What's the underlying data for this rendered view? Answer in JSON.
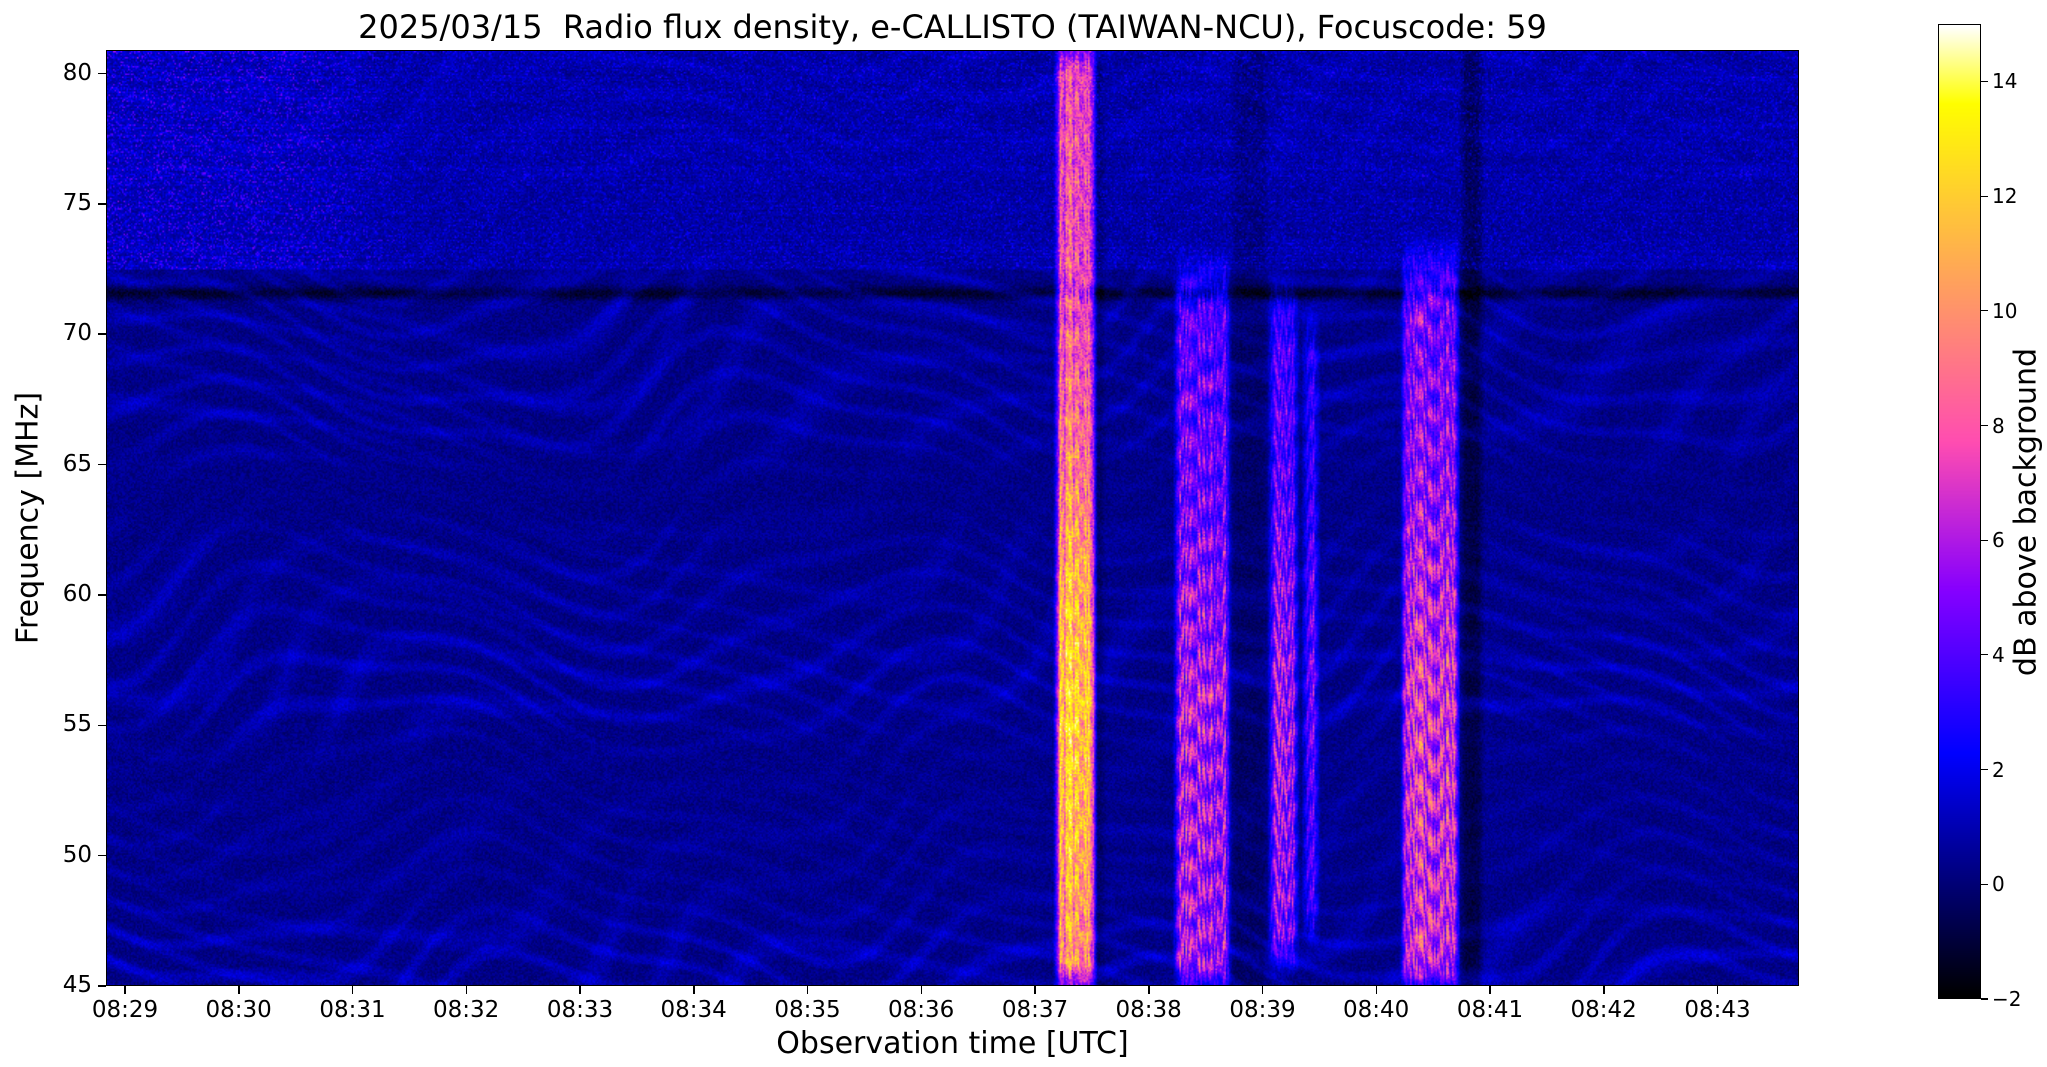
{
  "chart_data": {
    "type": "heatmap",
    "title": "2025/03/15  Radio flux density, e-CALLISTO (TAIWAN-NCU), Focuscode: 59",
    "xlabel": "Observation time [UTC]",
    "ylabel": "Frequency [MHz]",
    "colorbar_label": "dB above background",
    "x_axis": {
      "start_utc": "08:28:50",
      "end_utc": "08:43:43",
      "ticks": [
        "08:29",
        "08:30",
        "08:31",
        "08:32",
        "08:33",
        "08:34",
        "08:35",
        "08:36",
        "08:37",
        "08:38",
        "08:39",
        "08:40",
        "08:41",
        "08:42",
        "08:43"
      ]
    },
    "y_axis": {
      "min_mhz": 45,
      "max_mhz": 80.9,
      "ticks": [
        80,
        75,
        70,
        65,
        60,
        55,
        50,
        45
      ]
    },
    "color_axis": {
      "min_db": -2,
      "max_db": 15,
      "ticks": [
        14,
        12,
        10,
        8,
        6,
        4,
        2,
        0,
        -2
      ],
      "colormap": "gnuplot2-like: black - dark blue - blue - violet - magenta - salmon - orange - yellow - white"
    },
    "background": {
      "noise_floor_db": 0.3,
      "pattern": "wavy diagonal interference fringes (~1.5 MHz spacing) forming curved chevron/moire arcs across the whole record",
      "enhanced_band": {
        "freq_low_mhz": 72.5,
        "freq_high_mhz": 80.9,
        "extra_db": 2.0,
        "left_boost_until_utc": "08:31:30",
        "note": "speckled brighter blue band 73-81 MHz, strongest with horizontal dashes before ~08:31:30"
      },
      "rfi_dark_lines_mhz": [
        71.6
      ]
    },
    "bursts": [
      {
        "start_utc": "08:37:12",
        "end_utc": "08:37:31",
        "freq_low_mhz": 45,
        "freq_high_mhz": 80.9,
        "peak_db": 10.5,
        "boost_center_mhz": 55,
        "boost_width_mhz": 11,
        "stripe_depth": 0.28,
        "stripe_drift": 0,
        "note": "strong broadband burst: bright pink/salmon column over full band with yellow knots near 48-63 MHz"
      },
      {
        "start_utc": "08:38:15",
        "end_utc": "08:38:42",
        "freq_low_mhz": 45,
        "freq_high_mhz": 72,
        "peak_db": 6.0,
        "boost_center_mhz": 52,
        "boost_width_mhz": 14,
        "stripe_depth": 0.55,
        "stripe_drift": 3.0,
        "note": "moderate burst with diagonal drifting striations, violet-magenta"
      },
      {
        "start_utc": "08:39:05",
        "end_utc": "08:39:18",
        "freq_low_mhz": 46,
        "freq_high_mhz": 71,
        "peak_db": 5.4,
        "boost_center_mhz": 54,
        "boost_width_mhz": 10,
        "stripe_depth": 0.6,
        "stripe_drift": 1.5,
        "note": "narrow weak violet burst"
      },
      {
        "start_utc": "08:39:23",
        "end_utc": "08:39:29",
        "freq_low_mhz": 47,
        "freq_high_mhz": 70,
        "peak_db": 4.4,
        "boost_center_mhz": 56,
        "boost_width_mhz": 9,
        "stripe_depth": 0.6,
        "stripe_drift": 1.5,
        "note": "very narrow faint streak"
      },
      {
        "start_utc": "08:40:15",
        "end_utc": "08:40:43",
        "freq_low_mhz": 45,
        "freq_high_mhz": 72.5,
        "peak_db": 6.4,
        "boost_center_mhz": 53,
        "boost_width_mhz": 13,
        "stripe_depth": 0.5,
        "stripe_drift": 0.8,
        "note": "burst group with internal banding, violet-magenta with salmon knots"
      }
    ],
    "dark_lanes": [
      {
        "start_utc": "08:37:31",
        "end_utc": "08:37:38",
        "depth_db": 0.7
      },
      {
        "start_utc": "08:38:43",
        "end_utc": "08:39:04",
        "depth_db": 0.55
      },
      {
        "start_utc": "08:40:44",
        "end_utc": "08:40:58",
        "depth_db": 1.1
      }
    ]
  }
}
